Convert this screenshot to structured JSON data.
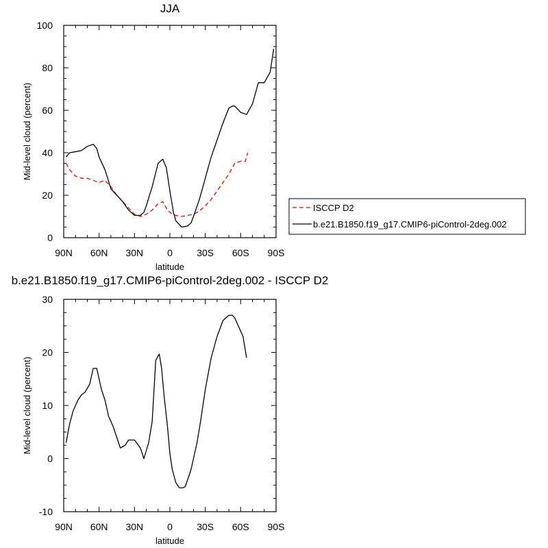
{
  "chart_data": [
    {
      "type": "line",
      "title": "JJA",
      "xlabel": "latitude",
      "ylabel": "Mid-level cloud (percent)",
      "xlim": [
        90,
        -90
      ],
      "ylim": [
        0,
        100
      ],
      "x_ticks": [
        90,
        60,
        30,
        0,
        -30,
        -60,
        -90
      ],
      "x_tick_labels": [
        "90N",
        "60N",
        "30N",
        "0",
        "30S",
        "60S",
        "90S"
      ],
      "y_ticks": [
        0,
        20,
        40,
        60,
        80,
        100
      ],
      "grid": false,
      "legend_position": "right",
      "series": [
        {
          "name": "ISCCP D2",
          "color": "#ff0000",
          "dash": "dashed",
          "x": [
            88,
            85,
            80,
            75,
            70,
            65,
            60,
            55,
            50,
            45,
            40,
            35,
            30,
            25,
            20,
            15,
            10,
            6,
            2,
            -2,
            -5,
            -10,
            -15,
            -20,
            -25,
            -30,
            -35,
            -40,
            -45,
            -50,
            -55,
            -60,
            -64,
            -66
          ],
          "y": [
            35,
            32,
            29,
            28,
            28,
            27,
            26,
            27,
            24,
            20,
            17,
            14,
            11,
            10,
            11,
            13,
            16,
            17,
            13,
            11,
            10.5,
            10,
            10.5,
            11,
            12.5,
            15,
            18,
            22,
            26,
            30,
            35,
            36,
            36,
            40
          ]
        },
        {
          "name": "b.e21.B1850.f19_g17.CMIP6-piControl-2deg.002",
          "color": "#000000",
          "dash": "solid",
          "x": [
            88,
            85,
            80,
            75,
            70,
            65,
            62,
            60,
            55,
            50,
            45,
            40,
            35,
            30,
            25,
            22,
            20,
            15,
            10,
            6,
            3,
            0,
            -3,
            -5,
            -10,
            -15,
            -18,
            -20,
            -25,
            -30,
            -35,
            -40,
            -45,
            -50,
            -53,
            -55,
            -60,
            -65,
            -70,
            -75,
            -80,
            -85,
            -88
          ],
          "y": [
            38,
            40,
            40.5,
            41,
            43,
            44,
            42,
            38,
            32,
            23,
            20,
            17,
            13,
            10.5,
            10.5,
            12,
            15,
            24,
            35,
            37,
            33,
            22,
            12,
            8,
            5,
            5.5,
            7,
            10,
            18,
            28,
            38,
            46,
            54,
            61,
            62,
            62,
            59,
            58,
            63,
            73,
            73,
            78,
            89
          ]
        }
      ]
    },
    {
      "type": "line",
      "title": "b.e21.B1850.f19_g17.CMIP6-piControl-2deg.002 - ISCCP D2",
      "xlabel": "latitude",
      "ylabel": "Mid-level cloud (percent)",
      "xlim": [
        90,
        -90
      ],
      "ylim": [
        -10,
        30
      ],
      "x_ticks": [
        90,
        60,
        30,
        0,
        -30,
        -60,
        -90
      ],
      "x_tick_labels": [
        "90N",
        "60N",
        "30N",
        "0",
        "30S",
        "60S",
        "90S"
      ],
      "y_ticks": [
        -10,
        0,
        10,
        20,
        30
      ],
      "grid": false,
      "series": [
        {
          "color": "#000000",
          "dash": "solid",
          "x": [
            88,
            85,
            82,
            78,
            75,
            72,
            68,
            65,
            62,
            58,
            55,
            52,
            48,
            45,
            42,
            38,
            35,
            30,
            25,
            22,
            18,
            15,
            12,
            9,
            7,
            5,
            2,
            0,
            -2,
            -5,
            -8,
            -11,
            -13,
            -15,
            -18,
            -20,
            -23,
            -26,
            -30,
            -35,
            -40,
            -45,
            -50,
            -53,
            -55,
            -58,
            -62,
            -65
          ],
          "y": [
            3,
            6.5,
            9,
            11,
            12,
            12.5,
            14,
            17,
            17,
            13,
            11,
            8,
            6,
            4,
            2,
            2.5,
            3.5,
            3.5,
            2,
            0,
            3,
            7,
            18.5,
            19.7,
            17,
            12,
            6,
            1,
            -2,
            -4.5,
            -5.5,
            -5.5,
            -5.3,
            -4,
            -2,
            0,
            3,
            7,
            13,
            19,
            23,
            26,
            27,
            27,
            26.5,
            25,
            23,
            19
          ]
        }
      ]
    }
  ]
}
